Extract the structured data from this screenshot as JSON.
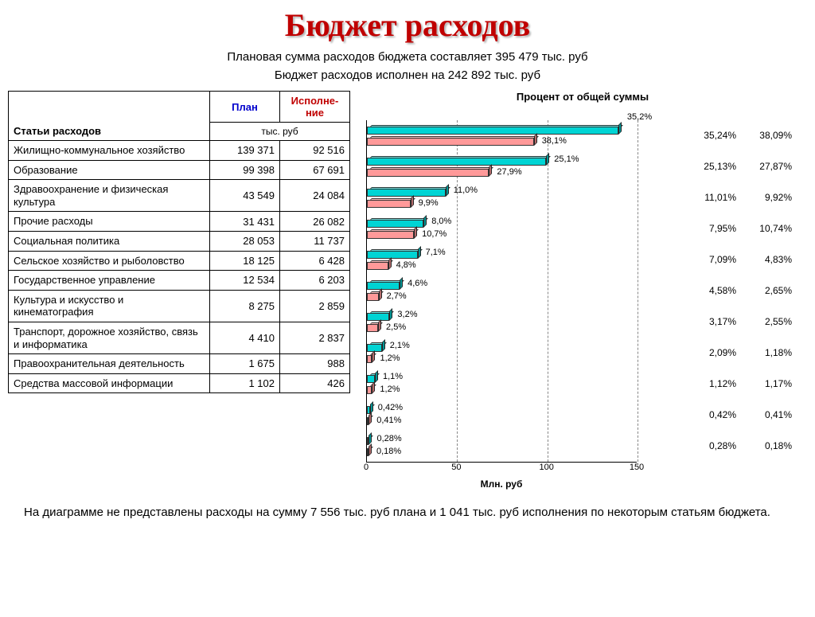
{
  "title": "Бюджет расходов",
  "subtitle1": "Плановая сумма расходов бюджета составляет 395 479 тыс. руб",
  "subtitle2": "Бюджет расходов исполнен на 242 892 тыс. руб",
  "table": {
    "category_header": "Статьи расходов",
    "plan_header": "План",
    "exec_header": "Исполне-ние",
    "unit_label": "тыс. руб",
    "rows": [
      {
        "cat": "Жилищно-коммунальное хозяйство",
        "plan": "139 371",
        "exec": "92 516"
      },
      {
        "cat": "Образование",
        "plan": "99 398",
        "exec": "67 691"
      },
      {
        "cat": "Здравоохранение и физическая культура",
        "plan": "43 549",
        "exec": "24 084"
      },
      {
        "cat": "Прочие расходы",
        "plan": "31 431",
        "exec": "26 082"
      },
      {
        "cat": "Социальная политика",
        "plan": "28 053",
        "exec": "11 737"
      },
      {
        "cat": "Сельское хозяйство и рыболовство",
        "plan": "18 125",
        "exec": "6 428"
      },
      {
        "cat": "Государственное управление",
        "plan": "12 534",
        "exec": "6 203"
      },
      {
        "cat": "Культура и искусство и кинематография",
        "plan": "8 275",
        "exec": "2 859"
      },
      {
        "cat": "Транспорт, дорожное хозяйство, связь и информатика",
        "plan": "4 410",
        "exec": "2 837"
      },
      {
        "cat": "Правоохранительная деятельность",
        "plan": "1 675",
        "exec": "988"
      },
      {
        "cat": "Средства массовой информации",
        "plan": "1 102",
        "exec": "426"
      }
    ]
  },
  "chart": {
    "title": "Процент от общей суммы",
    "x_label": "Млн. руб",
    "x_max": 150,
    "x_ticks": [
      0,
      50,
      100,
      150
    ],
    "plan_color": "#00d4d4",
    "plan_top_color": "#66e8e8",
    "exec_color": "#ff9999",
    "exec_top_color": "#ffc0c0",
    "top_value_label": "35,2%",
    "rows": [
      {
        "plan_val": 139.371,
        "exec_val": 92.516,
        "plan_label": "",
        "exec_label": "38,1%",
        "plan_pct": "35,24%",
        "exec_pct": "38,09%"
      },
      {
        "plan_val": 99.398,
        "exec_val": 67.691,
        "plan_label": "25,1%",
        "exec_label": "27,9%",
        "plan_pct": "25,13%",
        "exec_pct": "27,87%"
      },
      {
        "plan_val": 43.549,
        "exec_val": 24.084,
        "plan_label": "11,0%",
        "exec_label": "9,9%",
        "plan_pct": "11,01%",
        "exec_pct": "9,92%"
      },
      {
        "plan_val": 31.431,
        "exec_val": 26.082,
        "plan_label": "8,0%",
        "exec_label": "10,7%",
        "plan_pct": "7,95%",
        "exec_pct": "10,74%"
      },
      {
        "plan_val": 28.053,
        "exec_val": 11.737,
        "plan_label": "7,1%",
        "exec_label": "4,8%",
        "plan_pct": "7,09%",
        "exec_pct": "4,83%"
      },
      {
        "plan_val": 18.125,
        "exec_val": 6.428,
        "plan_label": "4,6%",
        "exec_label": "2,7%",
        "plan_pct": "4,58%",
        "exec_pct": "2,65%"
      },
      {
        "plan_val": 12.534,
        "exec_val": 6.203,
        "plan_label": "3,2%",
        "exec_label": "2,5%",
        "plan_pct": "3,17%",
        "exec_pct": "2,55%"
      },
      {
        "plan_val": 8.275,
        "exec_val": 2.859,
        "plan_label": "2,1%",
        "exec_label": "1,2%",
        "plan_pct": "2,09%",
        "exec_pct": "1,18%"
      },
      {
        "plan_val": 4.41,
        "exec_val": 2.837,
        "plan_label": "1,1%",
        "exec_label": "1,2%",
        "plan_pct": "1,12%",
        "exec_pct": "1,17%"
      },
      {
        "plan_val": 1.675,
        "exec_val": 0.988,
        "plan_label": "0,42%",
        "exec_label": "0,41%",
        "plan_pct": "0,42%",
        "exec_pct": "0,41%"
      },
      {
        "plan_val": 1.102,
        "exec_val": 0.426,
        "plan_label": "0,28%",
        "exec_label": "0,18%",
        "plan_pct": "0,28%",
        "exec_pct": "0,18%"
      }
    ]
  },
  "footnote": "На диаграмме не представлены расходы на сумму 7 556 тыс. руб плана и 1 041 тыс. руб исполнения по некоторым статьям бюджета."
}
